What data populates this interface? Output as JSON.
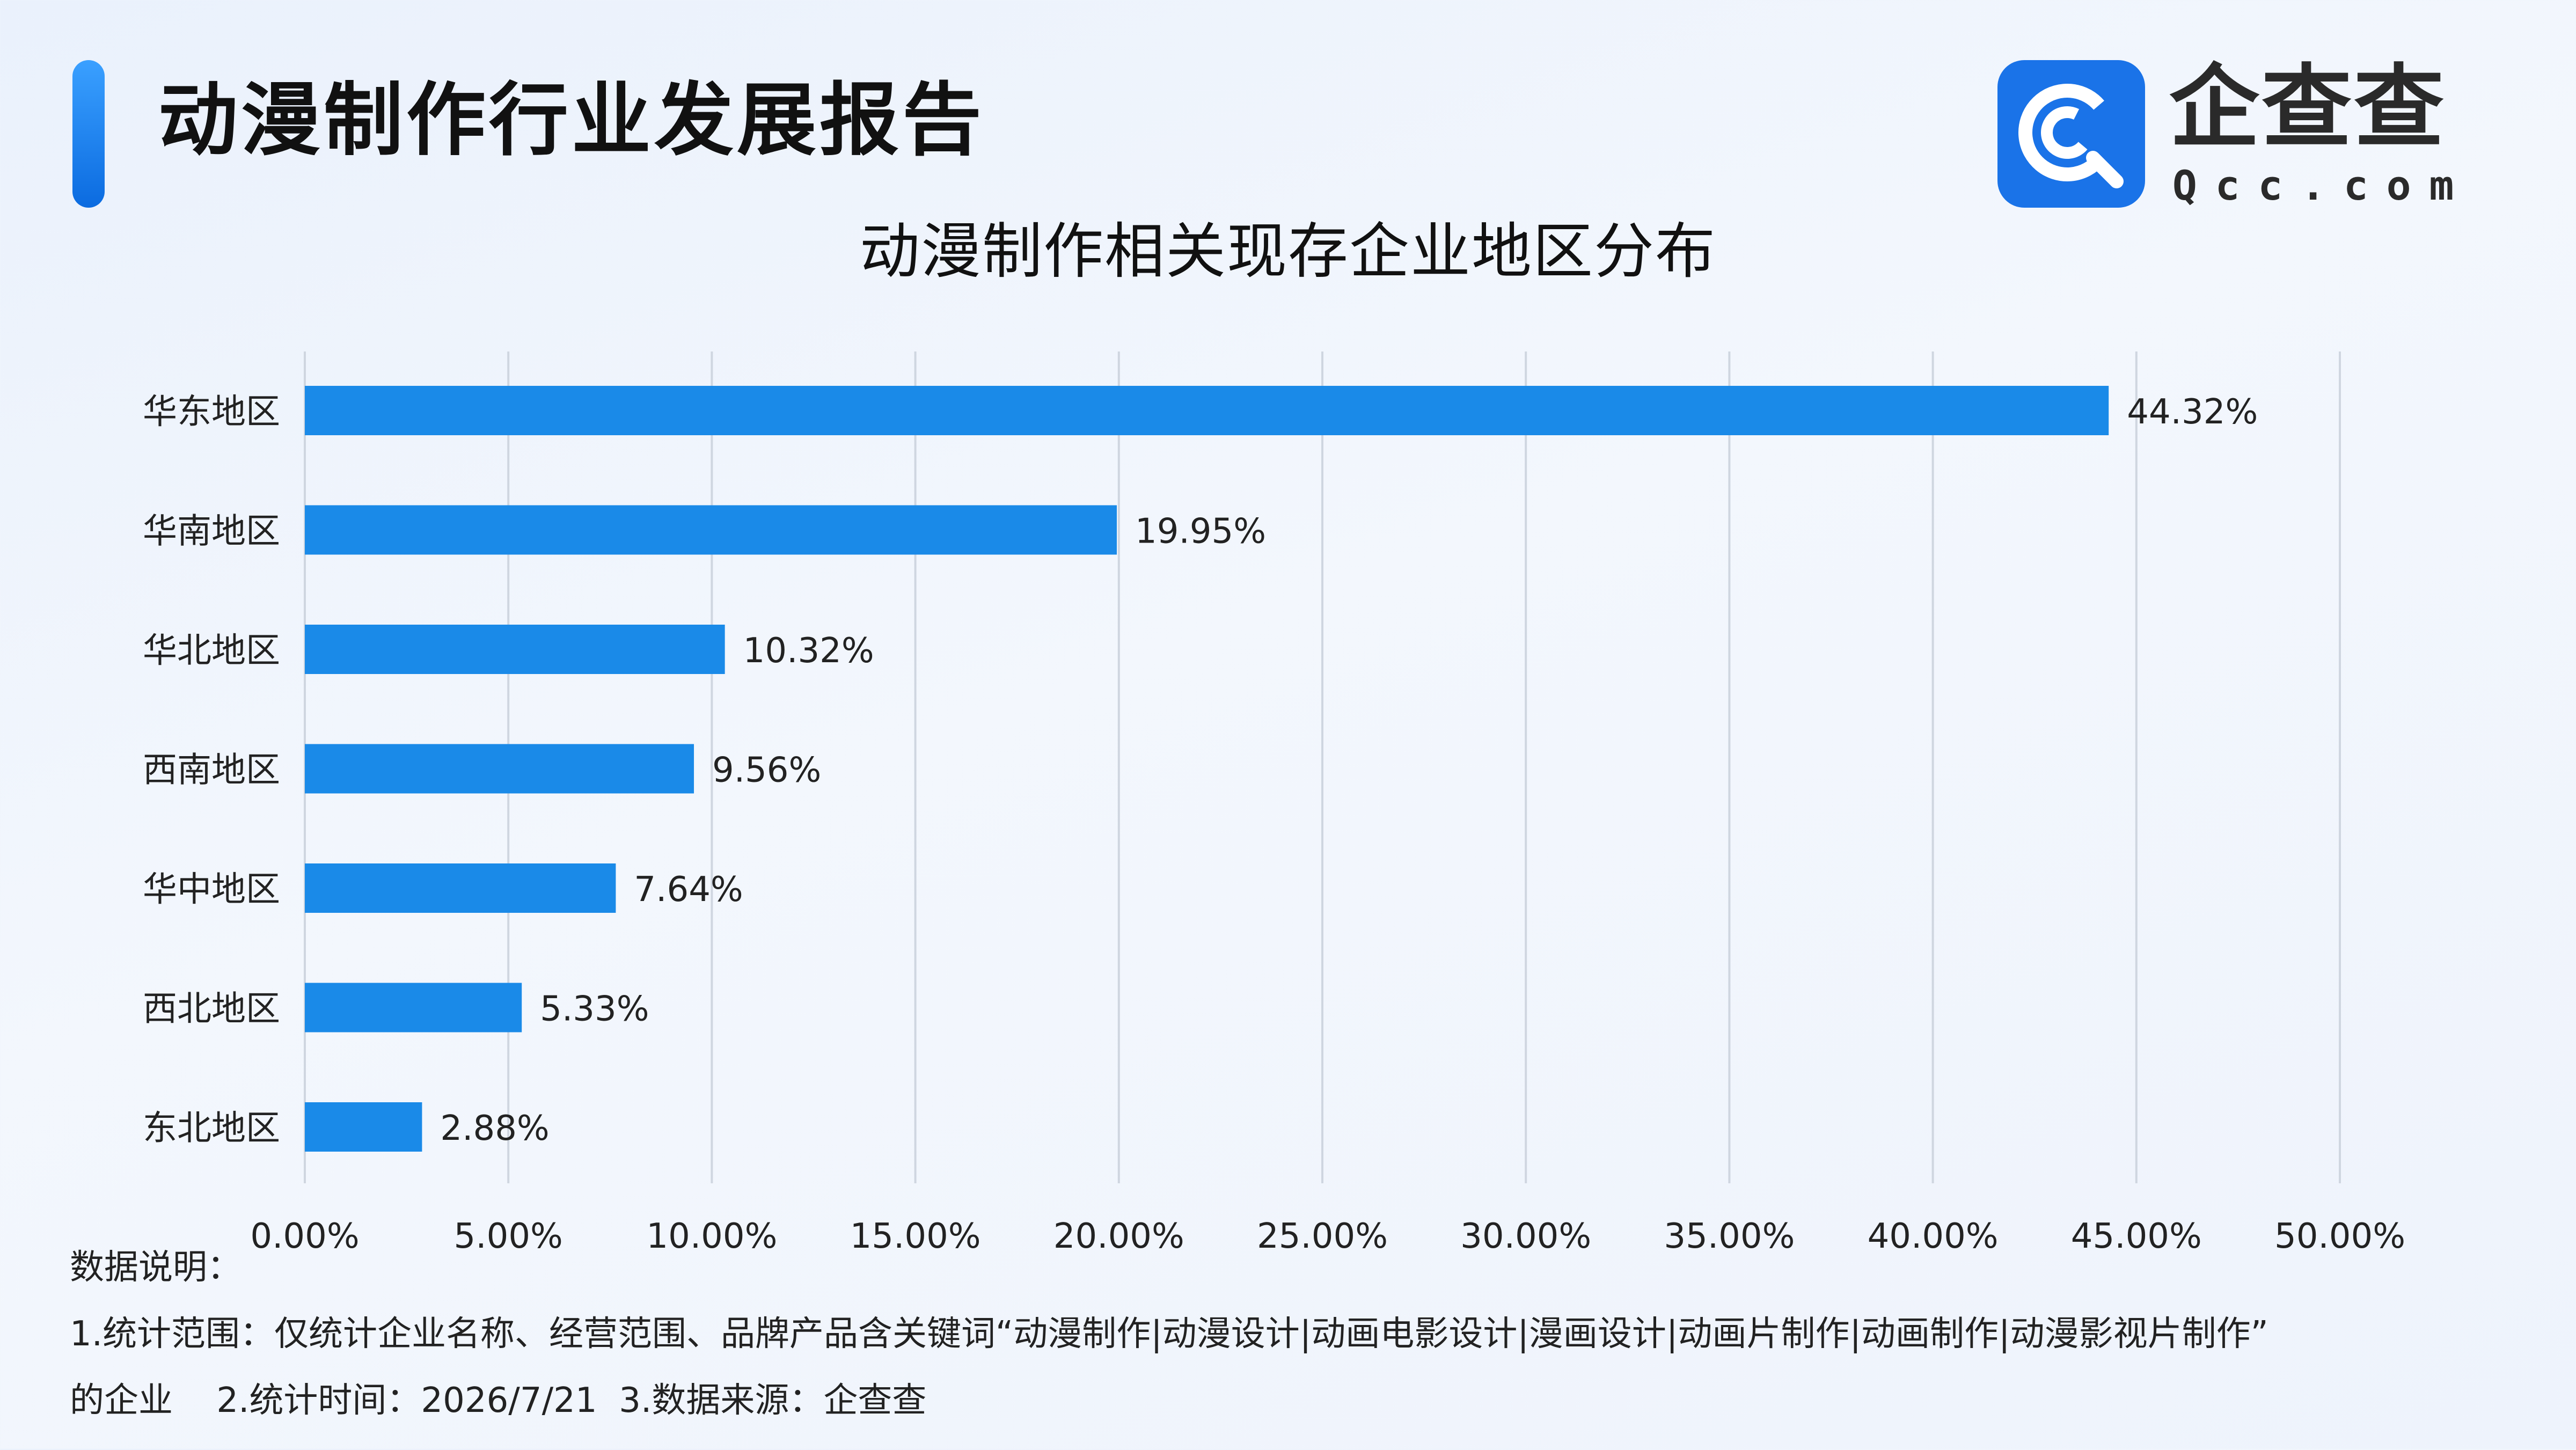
{
  "header": {
    "title": "动漫制作行业发展报告"
  },
  "logo": {
    "name": "企查查",
    "domain": "Qcc.com",
    "icon": "qcc-logo-icon"
  },
  "colors": {
    "accent": "#1a73e8",
    "bar": "#1a8ae8",
    "grid": "#cfd6e0"
  },
  "chart_data": {
    "type": "bar",
    "orientation": "horizontal",
    "title": "动漫制作相关现存企业地区分布",
    "categories": [
      "华东地区",
      "华南地区",
      "华北地区",
      "西南地区",
      "华中地区",
      "西北地区",
      "东北地区"
    ],
    "values": [
      44.32,
      19.95,
      10.32,
      9.56,
      7.64,
      5.33,
      2.88
    ],
    "value_labels": [
      "44.32%",
      "19.95%",
      "10.32%",
      "9.56%",
      "7.64%",
      "5.33%",
      "2.88%"
    ],
    "unit": "%",
    "xlim": [
      0,
      50
    ],
    "xticks": [
      "0.00%",
      "5.00%",
      "10.00%",
      "15.00%",
      "20.00%",
      "25.00%",
      "30.00%",
      "35.00%",
      "40.00%",
      "45.00%",
      "50.00%"
    ],
    "grid": "vertical",
    "legend": "none"
  },
  "notes": {
    "heading": "数据说明：",
    "line1": "1.统计范围：仅统计企业名称、经营范围、品牌产品含关键词“动漫制作|动漫设计|动画电影设计|漫画设计|动画片制作|动画制作|动漫影视片制作”",
    "line2_a": "的企业",
    "line2_b": "2.统计时间：2026/7/21",
    "line2_c": "3.数据来源：企查查"
  }
}
